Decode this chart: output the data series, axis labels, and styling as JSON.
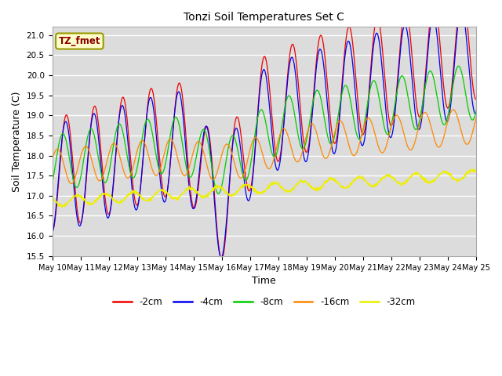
{
  "title": "Tonzi Soil Temperatures Set C",
  "xlabel": "Time",
  "ylabel": "Soil Temperature (C)",
  "annotation": "TZ_fmet",
  "ylim": [
    15.5,
    21.2
  ],
  "xlim_days": [
    10,
    25
  ],
  "colors": {
    "-2cm": "#ee0000",
    "-4cm": "#0000ee",
    "-8cm": "#00cc00",
    "-16cm": "#ff8800",
    "-32cm": "#eeee00"
  },
  "legend_labels": [
    "-2cm",
    "-4cm",
    "-8cm",
    "-16cm",
    "-32cm"
  ],
  "plot_bg_color": "#dcdcdc",
  "fig_bg_color": "#ffffff",
  "grid_color": "#ffffff",
  "tick_labels": [
    "May 10",
    "May 11",
    "May 12",
    "May 13",
    "May 14",
    "May 15",
    "May 16",
    "May 17",
    "May 18",
    "May 19",
    "May 20",
    "May 21",
    "May 22",
    "May 23",
    "May 24",
    "May 25"
  ]
}
